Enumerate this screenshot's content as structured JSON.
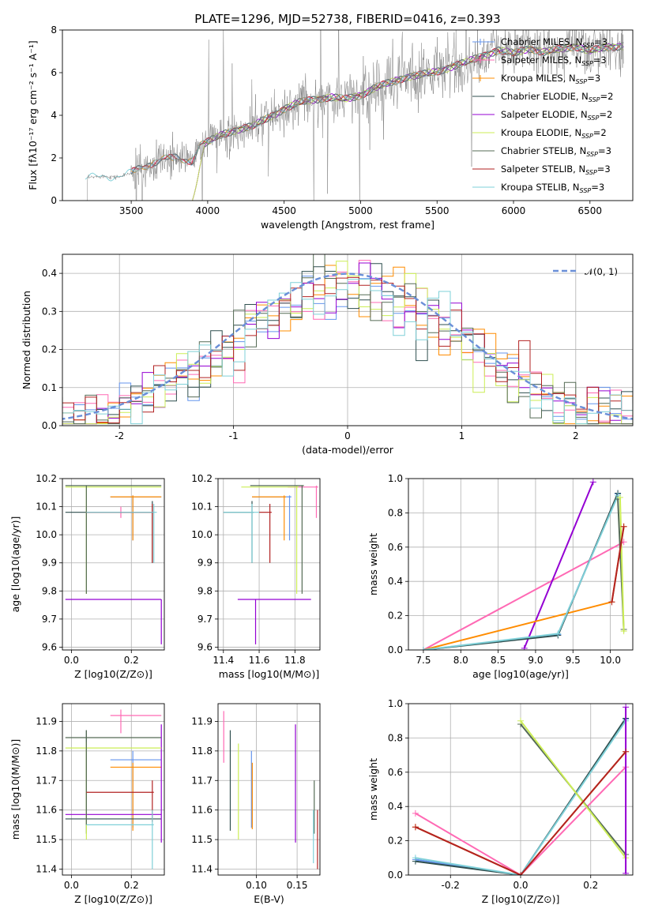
{
  "figure": {
    "title": "PLATE=1296, MJD=52738, FIBERID=0416, z=0.393"
  },
  "colors": {
    "chabrier_miles": "#6495ed",
    "salpeter_miles": "#ff69b4",
    "kroupa_miles": "#ff8c00",
    "chabrier_elodie": "#2f4f4f",
    "salpeter_elodie": "#9400d3",
    "kroupa_elodie": "#ccee55",
    "chabrier_stelib": "#556b55",
    "salpeter_stelib": "#b22222",
    "kroupa_stelib": "#7fd0d8",
    "data": "#808080",
    "normal": "#6a8fd8"
  },
  "legend": [
    {
      "label": "Chabrier MILES, N",
      "sub": "SSP",
      "suffix": "=3",
      "color": "chabrier_miles",
      "marker": true
    },
    {
      "label": "Salpeter MILES, N",
      "sub": "SSP",
      "suffix": "=3",
      "color": "salpeter_miles",
      "marker": true
    },
    {
      "label": "Kroupa MILES, N",
      "sub": "SSP",
      "suffix": "=3",
      "color": "kroupa_miles",
      "marker": true
    },
    {
      "label": "Chabrier ELODIE, N",
      "sub": "SSP",
      "suffix": "=2",
      "color": "chabrier_elodie",
      "marker": false
    },
    {
      "label": "Salpeter ELODIE, N",
      "sub": "SSP",
      "suffix": "=2",
      "color": "salpeter_elodie",
      "marker": false
    },
    {
      "label": "Kroupa ELODIE, N",
      "sub": "SSP",
      "suffix": "=2",
      "color": "kroupa_elodie",
      "marker": false
    },
    {
      "label": "Chabrier STELIB, N",
      "sub": "SSP",
      "suffix": "=3",
      "color": "chabrier_stelib",
      "marker": false
    },
    {
      "label": "Salpeter STELIB, N",
      "sub": "SSP",
      "suffix": "=3",
      "color": "salpeter_stelib",
      "marker": false
    },
    {
      "label": "Kroupa STELIB, N",
      "sub": "SSP",
      "suffix": "=3",
      "color": "kroupa_stelib",
      "marker": false
    }
  ],
  "hist_legend": "𝒩(0, 1)",
  "chart_data": [
    {
      "id": "spectrum",
      "type": "line",
      "xlabel": "wavelength [Angstrom, rest frame]",
      "ylabel": "Flux [fλ10⁻¹⁷ erg cm⁻² s⁻¹ A⁻¹]",
      "xlim": [
        3050,
        6780
      ],
      "ylim": [
        0,
        8
      ],
      "xticks": [
        3500,
        4000,
        4500,
        5000,
        5500,
        6000,
        6500
      ],
      "yticks": [
        0,
        2,
        4,
        6,
        8
      ],
      "continuum": [
        [
          3200,
          1.05
        ],
        [
          3300,
          1.15
        ],
        [
          3420,
          1.1
        ],
        [
          3500,
          1.3
        ],
        [
          3600,
          1.65
        ],
        [
          3700,
          1.95
        ],
        [
          3800,
          2.0
        ],
        [
          3900,
          1.85
        ],
        [
          3950,
          2.6
        ],
        [
          4000,
          2.75
        ],
        [
          4100,
          3.1
        ],
        [
          4200,
          3.35
        ],
        [
          4300,
          3.5
        ],
        [
          4400,
          3.9
        ],
        [
          4500,
          4.3
        ],
        [
          4600,
          4.6
        ],
        [
          4700,
          4.75
        ],
        [
          4800,
          4.85
        ],
        [
          4900,
          4.75
        ],
        [
          5000,
          4.95
        ],
        [
          5100,
          5.3
        ],
        [
          5200,
          5.55
        ],
        [
          5300,
          5.8
        ],
        [
          5400,
          5.9
        ],
        [
          5500,
          6.05
        ],
        [
          5600,
          6.3
        ],
        [
          5700,
          6.5
        ],
        [
          5800,
          6.8
        ],
        [
          5900,
          7.05
        ],
        [
          6000,
          6.9
        ],
        [
          6100,
          7.15
        ],
        [
          6200,
          6.95
        ],
        [
          6300,
          7.1
        ],
        [
          6400,
          7.25
        ],
        [
          6500,
          7.0
        ],
        [
          6600,
          7.2
        ],
        [
          6700,
          7.25
        ]
      ]
    },
    {
      "id": "residuals",
      "type": "histogram",
      "xlabel": "(data-model)/error",
      "ylabel": "Normed distribution",
      "xlim": [
        -2.5,
        2.5
      ],
      "ylim": [
        0,
        0.45
      ],
      "xticks": [
        -2,
        -1,
        0,
        1,
        2
      ],
      "yticks": [
        0.0,
        0.1,
        0.2,
        0.3,
        0.4
      ],
      "bin_width": 0.1,
      "normal_curve": {
        "mean": 0,
        "sigma": 1,
        "name": "N(0,1)"
      }
    },
    {
      "id": "age_vs_Z",
      "type": "errorbar",
      "xlabel": "Z [log10(Z/Z⊙)]",
      "ylabel": "age [log10(age/yr)]",
      "xlim": [
        -0.03,
        0.31
      ],
      "ylim": [
        9.59,
        10.2
      ],
      "xticks": [
        0.0,
        0.2
      ],
      "yticks": [
        9.6,
        9.7,
        9.8,
        9.9,
        10.0,
        10.1,
        10.2
      ],
      "points": [
        {
          "m": "chabrier_miles",
          "x": 0.205,
          "xlo": 0.13,
          "xhi": 0.3,
          "y": 10.135,
          "ylo": 9.98,
          "yhi": 10.14
        },
        {
          "m": "salpeter_miles",
          "x": 0.165,
          "xlo": 0.05,
          "xhi": 0.275,
          "y": 10.08,
          "ylo": 10.06,
          "yhi": 10.1
        },
        {
          "m": "kroupa_miles",
          "x": 0.205,
          "xlo": 0.13,
          "xhi": 0.3,
          "y": 10.135,
          "ylo": 9.98,
          "yhi": 10.14
        },
        {
          "m": "chabrier_elodie",
          "x": 0.27,
          "xlo": -0.02,
          "xhi": 0.275,
          "y": 10.08,
          "ylo": 9.9,
          "yhi": 10.12
        },
        {
          "m": "salpeter_elodie",
          "x": 0.3,
          "xlo": -0.02,
          "xhi": 0.3,
          "y": 9.77,
          "ylo": 9.61,
          "yhi": 9.77
        },
        {
          "m": "kroupa_elodie",
          "x": 0.05,
          "xlo": -0.02,
          "xhi": 0.3,
          "y": 10.17,
          "ylo": 9.79,
          "yhi": 10.175
        },
        {
          "m": "chabrier_stelib",
          "x": 0.05,
          "xlo": -0.02,
          "xhi": 0.3,
          "y": 10.175,
          "ylo": 9.79,
          "yhi": 10.175
        },
        {
          "m": "salpeter_stelib",
          "x": 0.27,
          "xlo": 0.05,
          "xhi": 0.275,
          "y": 10.08,
          "ylo": 9.9,
          "yhi": 10.11
        },
        {
          "m": "kroupa_stelib",
          "x": 0.275,
          "xlo": 0.05,
          "xhi": 0.285,
          "y": 10.08,
          "ylo": 9.9,
          "yhi": 10.11
        }
      ]
    },
    {
      "id": "age_vs_mass",
      "type": "errorbar",
      "xlabel": "mass [log10(M/M⊙)]",
      "ylabel": "",
      "xlim": [
        11.37,
        11.94
      ],
      "ylim": [
        9.59,
        10.2
      ],
      "xticks": [
        11.4,
        11.6,
        11.8
      ],
      "yticks": [
        9.6,
        9.7,
        9.8,
        9.9,
        10.0,
        10.1,
        10.2
      ],
      "points": [
        {
          "m": "chabrier_miles",
          "x": 11.77,
          "xlo": 11.56,
          "xhi": 11.78,
          "y": 10.135,
          "ylo": 9.98,
          "yhi": 10.14
        },
        {
          "m": "salpeter_miles",
          "x": 11.92,
          "xlo": 11.76,
          "xhi": 11.93,
          "y": 10.17,
          "ylo": 10.06,
          "yhi": 10.175
        },
        {
          "m": "kroupa_miles",
          "x": 11.74,
          "xlo": 11.56,
          "xhi": 11.75,
          "y": 10.135,
          "ylo": 9.98,
          "yhi": 10.14
        },
        {
          "m": "chabrier_elodie",
          "x": 11.56,
          "xlo": 11.4,
          "xhi": 11.57,
          "y": 10.08,
          "ylo": 9.9,
          "yhi": 10.12
        },
        {
          "m": "salpeter_elodie",
          "x": 11.58,
          "xlo": 11.48,
          "xhi": 11.89,
          "y": 9.77,
          "ylo": 9.61,
          "yhi": 9.77
        },
        {
          "m": "kroupa_elodie",
          "x": 11.81,
          "xlo": 11.5,
          "xhi": 11.82,
          "y": 10.17,
          "ylo": 9.79,
          "yhi": 10.175
        },
        {
          "m": "chabrier_stelib",
          "x": 11.84,
          "xlo": 11.55,
          "xhi": 11.85,
          "y": 10.175,
          "ylo": 9.79,
          "yhi": 10.175
        },
        {
          "m": "salpeter_stelib",
          "x": 11.66,
          "xlo": 11.6,
          "xhi": 11.67,
          "y": 10.08,
          "ylo": 9.9,
          "yhi": 10.11
        },
        {
          "m": "kroupa_stelib",
          "x": 11.56,
          "xlo": 11.4,
          "xhi": 11.6,
          "y": 10.08,
          "ylo": 9.9,
          "yhi": 10.11
        }
      ]
    },
    {
      "id": "weight_vs_age",
      "type": "line",
      "xlabel": "age  [log10(age/yr)]",
      "ylabel": "mass weight",
      "xlim": [
        7.3,
        10.3
      ],
      "ylim": [
        0,
        1
      ],
      "xticks": [
        7.5,
        8.0,
        8.5,
        9.0,
        9.5,
        10.0
      ],
      "yticks": [
        0.0,
        0.2,
        0.4,
        0.6,
        0.8,
        1.0
      ],
      "series": [
        {
          "m": "salpeter_miles",
          "x": [
            7.5,
            10.18
          ],
          "y": [
            0.0,
            0.63
          ]
        },
        {
          "m": "salpeter_elodie",
          "x": [
            8.85,
            9.77
          ],
          "y": [
            0.01,
            0.98
          ]
        },
        {
          "m": "kroupa_miles",
          "x": [
            7.5,
            10.02,
            10.18
          ],
          "y": [
            0.0,
            0.28,
            0.72
          ]
        },
        {
          "m": "chabrier_miles",
          "x": [
            7.5,
            9.3,
            10.1
          ],
          "y": [
            0.0,
            0.09,
            0.91
          ]
        },
        {
          "m": "chabrier_elodie",
          "x": [
            7.5,
            9.3,
            10.1
          ],
          "y": [
            0.0,
            0.085,
            0.915
          ]
        },
        {
          "m": "kroupa_stelib",
          "x": [
            7.5,
            9.3,
            10.1
          ],
          "y": [
            0.0,
            0.095,
            0.9
          ]
        },
        {
          "m": "chabrier_stelib",
          "x": [
            10.1,
            10.18
          ],
          "y": [
            0.88,
            0.12
          ]
        },
        {
          "m": "kroupa_elodie",
          "x": [
            10.13,
            10.18
          ],
          "y": [
            0.89,
            0.11
          ]
        },
        {
          "m": "salpeter_stelib",
          "x": [
            10.02,
            10.18
          ],
          "y": [
            0.28,
            0.72
          ]
        }
      ]
    },
    {
      "id": "mass_vs_Z",
      "type": "errorbar",
      "xlabel": "Z [log10(Z/Z⊙)]",
      "ylabel": "mass [log10(M/M⊙)]",
      "xlim": [
        -0.03,
        0.31
      ],
      "ylim": [
        11.38,
        11.96
      ],
      "xticks": [
        0.0,
        0.2
      ],
      "yticks": [
        11.4,
        11.5,
        11.6,
        11.7,
        11.8,
        11.9
      ],
      "points": [
        {
          "m": "chabrier_miles",
          "x": 0.205,
          "xlo": 0.13,
          "xhi": 0.3,
          "y": 11.77,
          "ylo": 11.54,
          "yhi": 11.8
        },
        {
          "m": "salpeter_miles",
          "x": 0.165,
          "xlo": 0.13,
          "xhi": 0.3,
          "y": 11.92,
          "ylo": 11.86,
          "yhi": 11.94
        },
        {
          "m": "kroupa_miles",
          "x": 0.205,
          "xlo": 0.13,
          "xhi": 0.3,
          "y": 11.745,
          "ylo": 11.53,
          "yhi": 11.76
        },
        {
          "m": "chabrier_elodie",
          "x": 0.05,
          "xlo": -0.02,
          "xhi": 0.3,
          "y": 11.57,
          "ylo": 11.52,
          "yhi": 11.87
        },
        {
          "m": "salpeter_elodie",
          "x": 0.3,
          "xlo": -0.02,
          "xhi": 0.3,
          "y": 11.585,
          "ylo": 11.49,
          "yhi": 11.89
        },
        {
          "m": "kroupa_elodie",
          "x": 0.05,
          "xlo": -0.02,
          "xhi": 0.3,
          "y": 11.81,
          "ylo": 11.5,
          "yhi": 11.83
        },
        {
          "m": "chabrier_stelib",
          "x": 0.05,
          "xlo": -0.02,
          "xhi": 0.3,
          "y": 11.845,
          "ylo": 11.55,
          "yhi": 11.87
        },
        {
          "m": "salpeter_stelib",
          "x": 0.27,
          "xlo": 0.05,
          "xhi": 0.275,
          "y": 11.66,
          "ylo": 11.56,
          "yhi": 11.7
        },
        {
          "m": "kroupa_stelib",
          "x": 0.27,
          "xlo": 0.05,
          "xhi": 0.275,
          "y": 11.55,
          "ylo": 11.4,
          "yhi": 11.6
        }
      ]
    },
    {
      "id": "ebv",
      "type": "errorbar",
      "xlabel": "E(B-V)",
      "ylabel": "",
      "xlim": [
        0.053,
        0.178
      ],
      "ylim": [
        11.38,
        11.96
      ],
      "xticks": [
        0.1,
        0.15
      ],
      "yticks": [
        11.4,
        11.5,
        11.6,
        11.7,
        11.8,
        11.9
      ],
      "points": [
        {
          "m": "chabrier_miles",
          "x": 0.094,
          "ylo": 11.54,
          "yhi": 11.8
        },
        {
          "m": "salpeter_miles",
          "x": 0.06,
          "ylo": 11.76,
          "yhi": 11.935
        },
        {
          "m": "kroupa_miles",
          "x": 0.095,
          "ylo": 11.535,
          "yhi": 11.76
        },
        {
          "m": "chabrier_elodie",
          "x": 0.068,
          "ylo": 11.53,
          "yhi": 11.87
        },
        {
          "m": "salpeter_elodie",
          "x": 0.148,
          "ylo": 11.49,
          "yhi": 11.89
        },
        {
          "m": "kroupa_elodie",
          "x": 0.078,
          "ylo": 11.5,
          "yhi": 11.825
        },
        {
          "m": "chabrier_stelib",
          "x": 0.171,
          "ylo": 11.52,
          "yhi": 11.7
        },
        {
          "m": "salpeter_stelib",
          "x": 0.175,
          "ylo": 11.4,
          "yhi": 11.6
        },
        {
          "m": "kroupa_stelib",
          "x": 0.17,
          "ylo": 11.42,
          "yhi": 11.6
        }
      ]
    },
    {
      "id": "weight_vs_Z",
      "type": "line",
      "xlabel": "Z [log10(Z/Z⊙)]",
      "ylabel": "mass weight",
      "xlim": [
        -0.32,
        0.32
      ],
      "ylim": [
        0,
        1
      ],
      "xticks": [
        -0.2,
        0.0,
        0.2
      ],
      "yticks": [
        0.0,
        0.2,
        0.4,
        0.6,
        0.8,
        1.0
      ],
      "series": [
        {
          "m": "salpeter_miles",
          "x": [
            -0.3,
            0.0,
            0.3
          ],
          "y": [
            0.36,
            0.0,
            0.63
          ]
        },
        {
          "m": "kroupa_miles",
          "x": [
            -0.3,
            0.0,
            0.3
          ],
          "y": [
            0.28,
            0.0,
            0.72
          ]
        },
        {
          "m": "chabrier_miles",
          "x": [
            -0.3,
            0.0,
            0.3
          ],
          "y": [
            0.09,
            0.0,
            0.91
          ]
        },
        {
          "m": "chabrier_elodie",
          "x": [
            -0.3,
            0.0,
            0.3
          ],
          "y": [
            0.08,
            0.0,
            0.915
          ]
        },
        {
          "m": "kroupa_stelib",
          "x": [
            -0.3,
            0.0,
            0.3
          ],
          "y": [
            0.1,
            0.0,
            0.9
          ]
        },
        {
          "m": "chabrier_stelib",
          "x": [
            0.0,
            0.3
          ],
          "y": [
            0.88,
            0.12
          ]
        },
        {
          "m": "kroupa_elodie",
          "x": [
            0.0,
            0.3
          ],
          "y": [
            0.9,
            0.1
          ]
        },
        {
          "m": "salpeter_elodie",
          "x": [
            0.3,
            0.3
          ],
          "y": [
            0.01,
            0.98
          ]
        },
        {
          "m": "salpeter_stelib",
          "x": [
            -0.3,
            0.0,
            0.3
          ],
          "y": [
            0.28,
            0.0,
            0.72
          ]
        }
      ]
    }
  ]
}
